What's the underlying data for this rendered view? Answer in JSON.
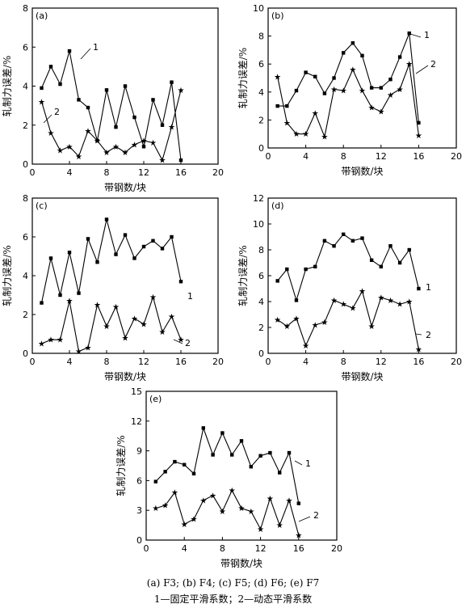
{
  "figure": {
    "caption_line1": "(a) F3; (b) F4; (c) F5; (d) F6; (e) F7",
    "caption_line2": "1—固定平滑系数；2—动态平滑系数"
  },
  "chart_data": [
    {
      "panel": "(a)",
      "type": "line",
      "xlabel": "带钢数/块",
      "ylabel": "轧制力误差/%",
      "xlim": [
        0,
        20
      ],
      "ylim": [
        0,
        8
      ],
      "xticks": [
        "0",
        "4",
        "8",
        "12",
        "16",
        "20"
      ],
      "yticks": [
        "0",
        "2",
        "4",
        "6",
        "8"
      ],
      "series": [
        {
          "name": "1",
          "marker": "square",
          "x": [
            1,
            2,
            3,
            4,
            5,
            6,
            7,
            8,
            9,
            10,
            11,
            12,
            13,
            14,
            15,
            16
          ],
          "values": [
            3.9,
            5.0,
            4.1,
            5.8,
            3.3,
            2.9,
            1.2,
            3.8,
            1.9,
            4.0,
            2.4,
            0.9,
            3.3,
            2.0,
            4.2,
            0.2
          ]
        },
        {
          "name": "2",
          "marker": "star",
          "x": [
            1,
            2,
            3,
            4,
            5,
            6,
            7,
            8,
            9,
            10,
            11,
            12,
            13,
            14,
            15,
            16
          ],
          "values": [
            3.2,
            1.6,
            0.7,
            0.9,
            0.4,
            1.7,
            1.2,
            0.6,
            0.9,
            0.6,
            1.0,
            1.2,
            1.1,
            0.2,
            1.9,
            3.8
          ]
        }
      ],
      "labels": [
        "1",
        "2"
      ]
    },
    {
      "panel": "(b)",
      "type": "line",
      "xlabel": "带钢数/块",
      "ylabel": "轧制力误差/%",
      "xlim": [
        0,
        20
      ],
      "ylim": [
        0,
        10
      ],
      "xticks": [
        "0",
        "4",
        "8",
        "12",
        "16",
        "20"
      ],
      "yticks": [
        "0",
        "2",
        "4",
        "6",
        "8",
        "10"
      ],
      "series": [
        {
          "name": "1",
          "marker": "square",
          "x": [
            1,
            2,
            3,
            4,
            5,
            6,
            7,
            8,
            9,
            10,
            11,
            12,
            13,
            14,
            15,
            16
          ],
          "values": [
            3.0,
            3.0,
            4.1,
            5.4,
            5.1,
            3.9,
            5.0,
            6.8,
            7.5,
            6.6,
            4.3,
            4.3,
            4.9,
            6.5,
            8.2,
            1.8
          ]
        },
        {
          "name": "2",
          "marker": "star",
          "x": [
            1,
            2,
            3,
            4,
            5,
            6,
            7,
            8,
            9,
            10,
            11,
            12,
            13,
            14,
            15,
            16
          ],
          "values": [
            5.1,
            1.8,
            1.0,
            1.0,
            2.5,
            0.8,
            4.2,
            4.1,
            5.6,
            4.1,
            2.9,
            2.6,
            3.8,
            4.2,
            6.0,
            0.9
          ]
        }
      ],
      "labels": [
        "1",
        "2"
      ]
    },
    {
      "panel": "(c)",
      "type": "line",
      "xlabel": "带钢数/块",
      "ylabel": "轧制力误差/%",
      "xlim": [
        0,
        20
      ],
      "ylim": [
        0,
        8
      ],
      "xticks": [
        "0",
        "4",
        "8",
        "12",
        "16",
        "20"
      ],
      "yticks": [
        "0",
        "2",
        "4",
        "6",
        "8"
      ],
      "series": [
        {
          "name": "1",
          "marker": "square",
          "x": [
            1,
            2,
            3,
            4,
            5,
            6,
            7,
            8,
            9,
            10,
            11,
            12,
            13,
            14,
            15,
            16
          ],
          "values": [
            2.6,
            4.9,
            3.0,
            5.2,
            3.1,
            5.9,
            4.7,
            6.9,
            5.1,
            6.1,
            4.9,
            5.5,
            5.8,
            5.4,
            6.0,
            3.7
          ]
        },
        {
          "name": "2",
          "marker": "star",
          "x": [
            1,
            2,
            3,
            4,
            5,
            6,
            7,
            8,
            9,
            10,
            11,
            12,
            13,
            14,
            15,
            16
          ],
          "values": [
            0.5,
            0.7,
            0.7,
            2.7,
            0.1,
            0.3,
            2.5,
            1.4,
            2.4,
            0.8,
            1.8,
            1.5,
            2.9,
            1.1,
            1.9,
            0.7
          ]
        }
      ],
      "labels": [
        "1",
        "2"
      ]
    },
    {
      "panel": "(d)",
      "type": "line",
      "xlabel": "带钢数/块",
      "ylabel": "轧制力误差/%",
      "xlim": [
        0,
        20
      ],
      "ylim": [
        0,
        12
      ],
      "xticks": [
        "0",
        "4",
        "8",
        "12",
        "16",
        "20"
      ],
      "yticks": [
        "0",
        "2",
        "4",
        "6",
        "8",
        "10",
        "12"
      ],
      "series": [
        {
          "name": "1",
          "marker": "square",
          "x": [
            1,
            2,
            3,
            4,
            5,
            6,
            7,
            8,
            9,
            10,
            11,
            12,
            13,
            14,
            15,
            16
          ],
          "values": [
            5.6,
            6.5,
            4.1,
            6.5,
            6.7,
            8.7,
            8.3,
            9.2,
            8.7,
            8.9,
            7.2,
            6.7,
            8.3,
            7.0,
            8.0,
            5.0
          ]
        },
        {
          "name": "2",
          "marker": "star",
          "x": [
            1,
            2,
            3,
            4,
            5,
            6,
            7,
            8,
            9,
            10,
            11,
            12,
            13,
            14,
            15,
            16
          ],
          "values": [
            2.6,
            2.1,
            2.7,
            0.6,
            2.2,
            2.4,
            4.1,
            3.8,
            3.5,
            4.8,
            2.1,
            4.3,
            4.1,
            3.8,
            4.0,
            0.3
          ]
        }
      ],
      "labels": [
        "1",
        "2"
      ]
    },
    {
      "panel": "(e)",
      "type": "line",
      "xlabel": "带钢数/块",
      "ylabel": "轧制力误差/%",
      "xlim": [
        0,
        20
      ],
      "ylim": [
        0,
        15
      ],
      "xticks": [
        "0",
        "4",
        "8",
        "12",
        "16",
        "20"
      ],
      "yticks": [
        "0",
        "3",
        "6",
        "9",
        "12",
        "15"
      ],
      "series": [
        {
          "name": "1",
          "marker": "square",
          "x": [
            1,
            2,
            3,
            4,
            5,
            6,
            7,
            8,
            9,
            10,
            11,
            12,
            13,
            14,
            15,
            16
          ],
          "values": [
            5.9,
            6.9,
            7.9,
            7.6,
            6.7,
            11.3,
            8.6,
            10.8,
            8.6,
            10.0,
            7.4,
            8.5,
            8.8,
            6.8,
            8.8,
            3.7
          ]
        },
        {
          "name": "2",
          "marker": "star",
          "x": [
            1,
            2,
            3,
            4,
            5,
            6,
            7,
            8,
            9,
            10,
            11,
            12,
            13,
            14,
            15,
            16
          ],
          "values": [
            3.2,
            3.5,
            4.8,
            1.6,
            2.1,
            4.0,
            4.5,
            2.9,
            5.0,
            3.2,
            2.9,
            1.1,
            4.2,
            1.5,
            4.0,
            0.5
          ]
        }
      ],
      "labels": [
        "1",
        "2"
      ]
    }
  ]
}
